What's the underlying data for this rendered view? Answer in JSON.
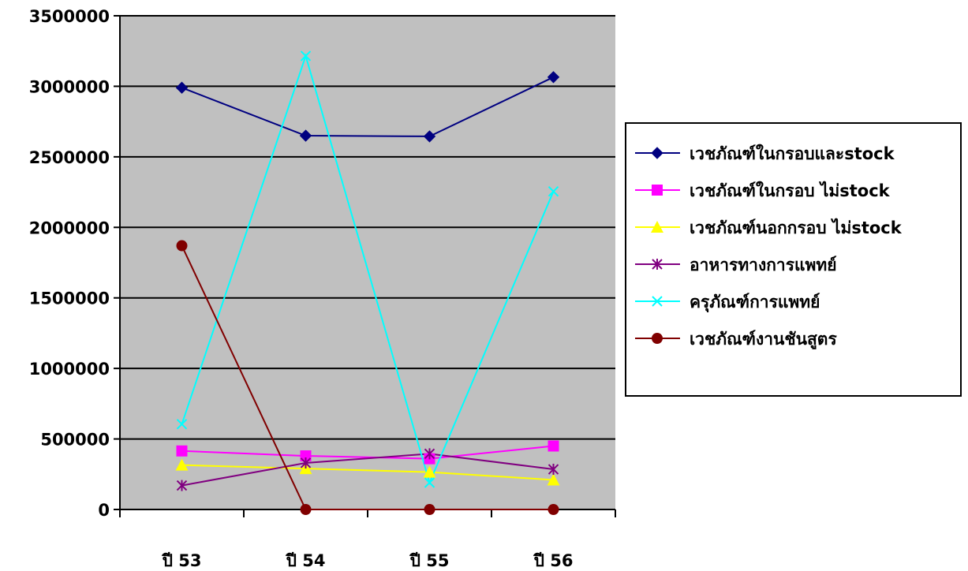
{
  "chart_data": {
    "type": "line",
    "title": "",
    "xlabel": "",
    "ylabel": "",
    "categories": [
      "ปี 53",
      "ปี 54",
      "ปี 55",
      "ปี 56"
    ],
    "ylim": [
      0,
      3500000
    ],
    "yticks": [
      0,
      500000,
      1000000,
      1500000,
      2000000,
      2500000,
      3000000,
      3500000
    ],
    "ytick_labels": [
      "0",
      "500000",
      "1000000",
      "1500000",
      "2000000",
      "2500000",
      "3000000",
      "3500000"
    ],
    "grid": true,
    "plot_background": "#c0c0c0",
    "legend_position": "right",
    "series": [
      {
        "name": "เวชภัณฑ์ในกรอบและstock",
        "values": [
          2990000,
          2650000,
          2645000,
          3065000
        ],
        "color": "#000080",
        "marker": "diamond"
      },
      {
        "name": "เวชภัณฑ์ในกรอบ ไม่stock",
        "values": [
          415000,
          380000,
          360000,
          450000
        ],
        "color": "#ff00ff",
        "marker": "square"
      },
      {
        "name": "เวชภัณฑ์นอกกรอบ ไม่stock",
        "values": [
          315000,
          290000,
          265000,
          210000
        ],
        "color": "#ffff00",
        "marker": "triangle"
      },
      {
        "name": "อาหารทางการแพทย์",
        "values": [
          170000,
          330000,
          395000,
          285000
        ],
        "color": "#800080",
        "marker": "asterisk"
      },
      {
        "name": "ครุภัณฑ์การแพทย์",
        "values": [
          605000,
          3215000,
          190000,
          2255000
        ],
        "color": "#00ffff",
        "marker": "x"
      },
      {
        "name": "เวชภัณฑ์งานชันสูตร",
        "values": [
          1870000,
          0,
          0,
          0
        ],
        "color": "#800000",
        "marker": "circle"
      }
    ]
  }
}
